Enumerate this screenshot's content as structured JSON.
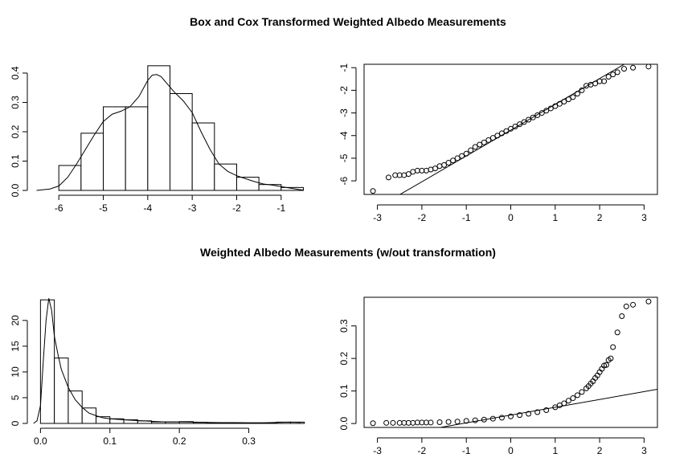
{
  "titles": {
    "top": "Box and Cox Transformed Weighted Albedo Measurements",
    "bottom": "Weighted Albedo Measurements (w/out transformation)"
  },
  "chart_data": [
    {
      "type": "histogram",
      "bins": [
        {
          "from": -6.0,
          "to": -5.5,
          "value": 0.085
        },
        {
          "from": -5.5,
          "to": -5.0,
          "value": 0.195
        },
        {
          "from": -5.0,
          "to": -4.5,
          "value": 0.285
        },
        {
          "from": -4.5,
          "to": -4.0,
          "value": 0.285
        },
        {
          "from": -4.0,
          "to": -3.5,
          "value": 0.425
        },
        {
          "from": -3.5,
          "to": -3.0,
          "value": 0.33
        },
        {
          "from": -3.0,
          "to": -2.5,
          "value": 0.23
        },
        {
          "from": -2.5,
          "to": -2.0,
          "value": 0.09
        },
        {
          "from": -2.0,
          "to": -1.5,
          "value": 0.045
        },
        {
          "from": -1.5,
          "to": -1.0,
          "value": 0.02
        },
        {
          "from": -1.0,
          "to": -0.5,
          "value": 0.01
        }
      ],
      "density": {
        "x": [
          -6.5,
          -6.2,
          -6.0,
          -5.8,
          -5.6,
          -5.4,
          -5.2,
          -5.0,
          -4.8,
          -4.6,
          -4.4,
          -4.2,
          -4.0,
          -3.9,
          -3.8,
          -3.7,
          -3.6,
          -3.4,
          -3.2,
          -3.0,
          -2.8,
          -2.6,
          -2.4,
          -2.2,
          -2.0,
          -1.8,
          -1.6,
          -1.4,
          -1.2,
          -1.0,
          -0.8,
          -0.6,
          -0.5
        ],
        "y": [
          0.0,
          0.005,
          0.015,
          0.045,
          0.09,
          0.14,
          0.19,
          0.235,
          0.26,
          0.27,
          0.285,
          0.32,
          0.375,
          0.393,
          0.395,
          0.388,
          0.37,
          0.335,
          0.305,
          0.265,
          0.2,
          0.14,
          0.09,
          0.065,
          0.05,
          0.04,
          0.03,
          0.022,
          0.018,
          0.013,
          0.008,
          0.003,
          0.001
        ]
      },
      "xlim": [
        -6.6,
        -0.4
      ],
      "ylim": [
        0,
        0.43
      ],
      "xticks": [
        -6,
        -5,
        -4,
        -3,
        -2,
        -1
      ],
      "yticks": [
        0.0,
        0.1,
        0.2,
        0.3,
        0.4
      ],
      "xtick_labels": [
        "-6",
        "-5",
        "-4",
        "-3",
        "-2",
        "-1"
      ],
      "ytick_labels": [
        "0.0",
        "0.1",
        "0.2",
        "0.3",
        "0.4"
      ],
      "grid": false,
      "box": false
    },
    {
      "type": "scatter",
      "subtype": "normal-qq",
      "points": {
        "x": [
          -3.1,
          -2.75,
          -2.6,
          -2.5,
          -2.4,
          -2.3,
          -2.2,
          -2.1,
          -2.0,
          -1.9,
          -1.8,
          -1.7,
          -1.6,
          -1.5,
          -1.4,
          -1.3,
          -1.2,
          -1.1,
          -1.0,
          -0.9,
          -0.8,
          -0.7,
          -0.6,
          -0.5,
          -0.4,
          -0.3,
          -0.2,
          -0.1,
          0.0,
          0.1,
          0.2,
          0.3,
          0.4,
          0.5,
          0.6,
          0.7,
          0.8,
          0.9,
          1.0,
          1.1,
          1.2,
          1.3,
          1.4,
          1.5,
          1.6,
          1.7,
          1.8,
          1.9,
          2.0,
          2.1,
          2.2,
          2.3,
          2.4,
          2.55,
          2.75,
          3.1
        ],
        "y": [
          -6.45,
          -5.85,
          -5.75,
          -5.75,
          -5.75,
          -5.7,
          -5.6,
          -5.55,
          -5.55,
          -5.55,
          -5.5,
          -5.45,
          -5.35,
          -5.3,
          -5.2,
          -5.1,
          -5.0,
          -4.9,
          -4.8,
          -4.65,
          -4.5,
          -4.4,
          -4.3,
          -4.2,
          -4.1,
          -4.0,
          -3.9,
          -3.8,
          -3.7,
          -3.6,
          -3.5,
          -3.4,
          -3.3,
          -3.2,
          -3.1,
          -3.0,
          -2.9,
          -2.8,
          -2.7,
          -2.6,
          -2.5,
          -2.4,
          -2.3,
          -2.15,
          -2.0,
          -1.8,
          -1.75,
          -1.7,
          -1.6,
          -1.6,
          -1.4,
          -1.3,
          -1.2,
          -1.05,
          -1.0,
          -0.95
        ]
      },
      "line": {
        "intercept": -3.76,
        "slope": 1.14
      },
      "xlim": [
        -3.3,
        3.3
      ],
      "ylim": [
        -6.6,
        -0.85
      ],
      "xticks": [
        -3,
        -2,
        -1,
        0,
        1,
        2,
        3
      ],
      "yticks": [
        -6,
        -5,
        -4,
        -3,
        -2,
        -1
      ],
      "xtick_labels": [
        "-3",
        "-2",
        "-1",
        "0",
        "1",
        "2",
        "3"
      ],
      "ytick_labels": [
        "-6",
        "-5",
        "-4",
        "-3",
        "-2",
        "-1"
      ],
      "grid": false,
      "box": true
    },
    {
      "type": "histogram",
      "bins": [
        {
          "from": 0.0,
          "to": 0.02,
          "value": 24
        },
        {
          "from": 0.02,
          "to": 0.04,
          "value": 12.7
        },
        {
          "from": 0.04,
          "to": 0.06,
          "value": 6.3
        },
        {
          "from": 0.06,
          "to": 0.08,
          "value": 3.0
        },
        {
          "from": 0.08,
          "to": 0.1,
          "value": 1.3
        },
        {
          "from": 0.1,
          "to": 0.12,
          "value": 0.9
        },
        {
          "from": 0.12,
          "to": 0.14,
          "value": 0.7
        },
        {
          "from": 0.14,
          "to": 0.16,
          "value": 0.5
        },
        {
          "from": 0.16,
          "to": 0.18,
          "value": 0.3
        },
        {
          "from": 0.18,
          "to": 0.2,
          "value": 0.3
        },
        {
          "from": 0.2,
          "to": 0.22,
          "value": 0.35
        },
        {
          "from": 0.22,
          "to": 0.24,
          "value": 0.2
        },
        {
          "from": 0.24,
          "to": 0.26,
          "value": 0.15
        },
        {
          "from": 0.26,
          "to": 0.28,
          "value": 0.15
        },
        {
          "from": 0.28,
          "to": 0.3,
          "value": 0.1
        },
        {
          "from": 0.3,
          "to": 0.32,
          "value": 0.1
        },
        {
          "from": 0.32,
          "to": 0.34,
          "value": 0.1
        },
        {
          "from": 0.34,
          "to": 0.36,
          "value": 0.25
        },
        {
          "from": 0.36,
          "to": 0.38,
          "value": 0.25
        }
      ],
      "density": {
        "x": [
          -0.01,
          -0.005,
          0.0,
          0.004,
          0.008,
          0.012,
          0.016,
          0.02,
          0.025,
          0.03,
          0.04,
          0.05,
          0.06,
          0.07,
          0.08,
          0.09,
          0.1,
          0.12,
          0.14,
          0.16,
          0.18,
          0.2,
          0.22,
          0.24,
          0.26,
          0.28,
          0.3,
          0.32,
          0.34,
          0.36,
          0.375
        ],
        "y": [
          0.0,
          0.5,
          3.5,
          12.0,
          20.0,
          24.3,
          22.0,
          17.0,
          13.5,
          10.5,
          7.0,
          4.6,
          3.1,
          2.0,
          1.5,
          1.1,
          0.9,
          0.7,
          0.55,
          0.4,
          0.3,
          0.3,
          0.25,
          0.2,
          0.15,
          0.15,
          0.12,
          0.12,
          0.18,
          0.25,
          0.2
        ]
      },
      "xlim": [
        -0.012,
        0.385
      ],
      "ylim": [
        0,
        24.5
      ],
      "xticks": [
        0.0,
        0.1,
        0.2,
        0.3
      ],
      "yticks": [
        0,
        5,
        10,
        15,
        20
      ],
      "xtick_labels": [
        "0.0",
        "0.1",
        "0.2",
        "0.3"
      ],
      "ytick_labels": [
        "0",
        "5",
        "10",
        "15",
        "20"
      ],
      "grid": false,
      "box": false
    },
    {
      "type": "scatter",
      "subtype": "normal-qq",
      "points": {
        "x": [
          -3.1,
          -2.8,
          -2.65,
          -2.5,
          -2.4,
          -2.3,
          -2.2,
          -2.1,
          -2.0,
          -1.9,
          -1.8,
          -1.6,
          -1.4,
          -1.2,
          -1.0,
          -0.8,
          -0.6,
          -0.4,
          -0.2,
          0.0,
          0.2,
          0.4,
          0.6,
          0.8,
          1.0,
          1.1,
          1.2,
          1.3,
          1.4,
          1.5,
          1.6,
          1.7,
          1.75,
          1.8,
          1.85,
          1.9,
          1.95,
          2.0,
          2.05,
          2.1,
          2.15,
          2.2,
          2.25,
          2.3,
          2.4,
          2.5,
          2.6,
          2.75,
          3.1
        ],
        "y": [
          0.001,
          0.002,
          0.002,
          0.002,
          0.002,
          0.002,
          0.002,
          0.003,
          0.003,
          0.003,
          0.003,
          0.004,
          0.005,
          0.006,
          0.008,
          0.01,
          0.012,
          0.015,
          0.018,
          0.022,
          0.026,
          0.03,
          0.035,
          0.041,
          0.05,
          0.056,
          0.062,
          0.07,
          0.078,
          0.087,
          0.097,
          0.108,
          0.115,
          0.123,
          0.13,
          0.14,
          0.148,
          0.158,
          0.168,
          0.178,
          0.18,
          0.195,
          0.2,
          0.235,
          0.28,
          0.33,
          0.36,
          0.365,
          0.375
        ]
      },
      "line": {
        "intercept": 0.026,
        "slope": 0.024
      },
      "xlim": [
        -3.3,
        3.3
      ],
      "ylim": [
        -0.012,
        0.388
      ],
      "xticks": [
        -3,
        -2,
        -1,
        0,
        1,
        2,
        3
      ],
      "yticks": [
        0.0,
        0.1,
        0.2,
        0.3
      ],
      "xtick_labels": [
        "-3",
        "-2",
        "-1",
        "0",
        "1",
        "2",
        "3"
      ],
      "ytick_labels": [
        "0.0",
        "0.1",
        "0.2",
        "0.3"
      ],
      "grid": false,
      "box": true
    }
  ]
}
